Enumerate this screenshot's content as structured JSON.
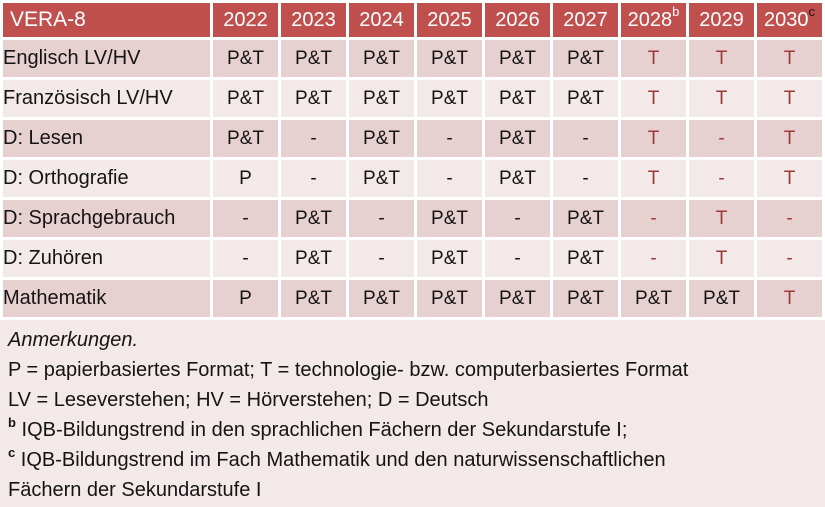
{
  "colors": {
    "header_bg": "#C0504D",
    "header_text": "#FFFFFF",
    "band_dark": "#E7D1D0",
    "band_light": "#F2E9E8",
    "accent_red_text": "#9B3A37",
    "body_text": "#141414"
  },
  "table": {
    "corner_label": "VERA-8",
    "years": [
      {
        "label": "2022",
        "sup": "",
        "sup_color": ""
      },
      {
        "label": "2023",
        "sup": "",
        "sup_color": ""
      },
      {
        "label": "2024",
        "sup": "",
        "sup_color": ""
      },
      {
        "label": "2025",
        "sup": "",
        "sup_color": ""
      },
      {
        "label": "2026",
        "sup": "",
        "sup_color": ""
      },
      {
        "label": "2027",
        "sup": "",
        "sup_color": ""
      },
      {
        "label": "2028",
        "sup": "b",
        "sup_color": "#FFFFFF"
      },
      {
        "label": "2029",
        "sup": "",
        "sup_color": ""
      },
      {
        "label": "2030",
        "sup": "c",
        "sup_color": "#141414"
      }
    ],
    "rows": [
      {
        "label": "Englisch LV/HV",
        "cells": [
          {
            "t": "P&T",
            "red": false
          },
          {
            "t": "P&T",
            "red": false
          },
          {
            "t": "P&T",
            "red": false
          },
          {
            "t": "P&T",
            "red": false
          },
          {
            "t": "P&T",
            "red": false
          },
          {
            "t": "P&T",
            "red": false
          },
          {
            "t": "T",
            "red": true
          },
          {
            "t": "T",
            "red": true
          },
          {
            "t": "T",
            "red": true
          }
        ]
      },
      {
        "label": "Französisch LV/HV",
        "cells": [
          {
            "t": "P&T",
            "red": false
          },
          {
            "t": "P&T",
            "red": false
          },
          {
            "t": "P&T",
            "red": false
          },
          {
            "t": "P&T",
            "red": false
          },
          {
            "t": "P&T",
            "red": false
          },
          {
            "t": "P&T",
            "red": false
          },
          {
            "t": "T",
            "red": true
          },
          {
            "t": "T",
            "red": true
          },
          {
            "t": "T",
            "red": true
          }
        ]
      },
      {
        "label": "D: Lesen",
        "cells": [
          {
            "t": "P&T",
            "red": false
          },
          {
            "t": "-",
            "red": false
          },
          {
            "t": "P&T",
            "red": false
          },
          {
            "t": "-",
            "red": false
          },
          {
            "t": "P&T",
            "red": false
          },
          {
            "t": "-",
            "red": false
          },
          {
            "t": "T",
            "red": true
          },
          {
            "t": "-",
            "red": true
          },
          {
            "t": "T",
            "red": true
          }
        ]
      },
      {
        "label": "D: Orthografie",
        "cells": [
          {
            "t": "P",
            "red": false
          },
          {
            "t": "-",
            "red": false
          },
          {
            "t": "P&T",
            "red": false
          },
          {
            "t": "-",
            "red": false
          },
          {
            "t": "P&T",
            "red": false
          },
          {
            "t": "-",
            "red": false
          },
          {
            "t": "T",
            "red": true
          },
          {
            "t": "-",
            "red": true
          },
          {
            "t": "T",
            "red": true
          }
        ]
      },
      {
        "label": "D: Sprachgebrauch",
        "cells": [
          {
            "t": "-",
            "red": false
          },
          {
            "t": "P&T",
            "red": false
          },
          {
            "t": "-",
            "red": false
          },
          {
            "t": "P&T",
            "red": false
          },
          {
            "t": "-",
            "red": false
          },
          {
            "t": "P&T",
            "red": false
          },
          {
            "t": "-",
            "red": true
          },
          {
            "t": "T",
            "red": true
          },
          {
            "t": "-",
            "red": true
          }
        ]
      },
      {
        "label": "D: Zuhören",
        "cells": [
          {
            "t": "-",
            "red": false
          },
          {
            "t": "P&T",
            "red": false
          },
          {
            "t": "-",
            "red": false
          },
          {
            "t": "P&T",
            "red": false
          },
          {
            "t": "-",
            "red": false
          },
          {
            "t": "P&T",
            "red": false
          },
          {
            "t": "-",
            "red": true
          },
          {
            "t": "T",
            "red": true
          },
          {
            "t": "-",
            "red": true
          }
        ]
      },
      {
        "label": "Mathematik",
        "cells": [
          {
            "t": "P",
            "red": false
          },
          {
            "t": "P&T",
            "red": false
          },
          {
            "t": "P&T",
            "red": false
          },
          {
            "t": "P&T",
            "red": false
          },
          {
            "t": "P&T",
            "red": false
          },
          {
            "t": "P&T",
            "red": false
          },
          {
            "t": "P&T",
            "red": false
          },
          {
            "t": "P&T",
            "red": false
          },
          {
            "t": "T",
            "red": true
          }
        ]
      }
    ]
  },
  "notes": {
    "heading": "Anmerkungen.",
    "lines": [
      {
        "sup": "",
        "text": "P = papierbasiertes Format; T = technologie- bzw. computerbasiertes Format"
      },
      {
        "sup": "",
        "text": "LV = Leseverstehen; HV = Hörverstehen; D = Deutsch"
      },
      {
        "sup": "b",
        "text": "IQB-Bildungstrend in den sprachlichen Fächern der Sekundarstufe I;"
      },
      {
        "sup": "c",
        "text": "IQB-Bildungstrend im Fach Mathematik und den naturwissenschaftlichen Fächern der Sekundarstufe I"
      }
    ]
  }
}
